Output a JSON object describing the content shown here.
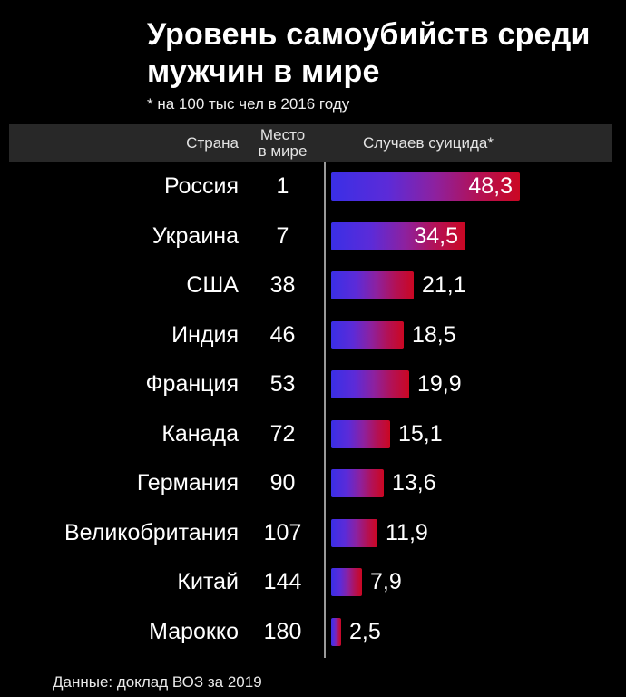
{
  "title_lines": [
    "Уровень самоубийств среди",
    "мужчин в мире"
  ],
  "subtitle": "* на 100 тыс чел в 2016 году",
  "header": {
    "country": "Страна",
    "rank_line1": "Место",
    "rank_line2": "в мире",
    "value": "Случаев суицида*"
  },
  "footer": "Данные: доклад ВОЗ за 2019",
  "colors": {
    "background": "#000000",
    "header_band": "#282828",
    "bar_gradient_start": "#3a2fe6",
    "bar_gradient_mid": "#8d219f",
    "bar_gradient_end": "#cb0722",
    "axis_line": "#9a9a9a",
    "text": "#ffffff"
  },
  "chart_data": {
    "type": "bar",
    "orientation": "horizontal",
    "title": "Уровень самоубийств среди мужчин в мире",
    "note": "* на 100 тыс чел в 2016 году",
    "source": "Данные: доклад ВОЗ за 2019",
    "columns": [
      "Страна",
      "Место в мире",
      "Случаев суицида*"
    ],
    "categories": [
      "Россия",
      "Украина",
      "США",
      "Индия",
      "Франция",
      "Канада",
      "Германия",
      "Великобритания",
      "Китай",
      "Марокко"
    ],
    "ranks": [
      "1",
      "7",
      "38",
      "46",
      "53",
      "72",
      "90",
      "107",
      "144",
      "180"
    ],
    "values": [
      48.3,
      34.5,
      21.1,
      18.5,
      19.9,
      15.1,
      13.6,
      11.9,
      7.9,
      2.5
    ],
    "value_labels": [
      "48,3",
      "34,5",
      "21,1",
      "18,5",
      "19,9",
      "15,1",
      "13,6",
      "11,9",
      "7,9",
      "2,5"
    ],
    "xlim": [
      0,
      50
    ],
    "legend": "none",
    "grid": "off"
  }
}
